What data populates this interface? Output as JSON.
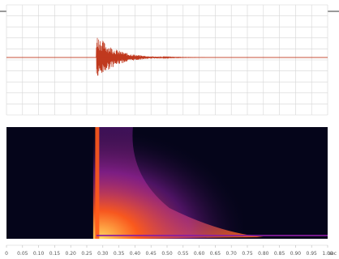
{
  "chart_data": [
    {
      "type": "line",
      "panel": "waveform",
      "x_unit": "sec",
      "xlim": [
        0,
        1
      ],
      "ylim": [
        -1,
        1
      ],
      "grid": true,
      "colors": {
        "trace": "#c0391e",
        "grid": "#d6d6d6",
        "background": "#ffffff"
      },
      "trace_summary": {
        "onset_sec": 0.28,
        "peak_amplitude": 0.85,
        "decay_end_sec": 0.62,
        "noise_amplitude": 0.0
      }
    },
    {
      "type": "heatmap",
      "panel": "spectrogram",
      "x_unit": "sec",
      "xlim": [
        0,
        1
      ],
      "colors": {
        "low": "#05051a",
        "mid": "#8a1fa0",
        "high": "#ff5a1a",
        "peak": "#ffd860"
      },
      "energy_summary": {
        "onset_sec": 0.28,
        "decay_end_sec": 0.8
      }
    }
  ],
  "x_axis": {
    "ticks": [
      "0",
      "0.05",
      "0.10",
      "0.15",
      "0.20",
      "0.25",
      "0.30",
      "0.35",
      "0.40",
      "0.45",
      "0.50",
      "0.55",
      "0.60",
      "0.65",
      "0.70",
      "0.75",
      "0.80",
      "0.85",
      "0.90",
      "0.95",
      "1.00"
    ],
    "tick_values": [
      0,
      0.05,
      0.1,
      0.15,
      0.2,
      0.25,
      0.3,
      0.35,
      0.4,
      0.45,
      0.5,
      0.55,
      0.6,
      0.65,
      0.7,
      0.75,
      0.8,
      0.85,
      0.9,
      0.95,
      1.0
    ],
    "unit_label": "sec"
  }
}
